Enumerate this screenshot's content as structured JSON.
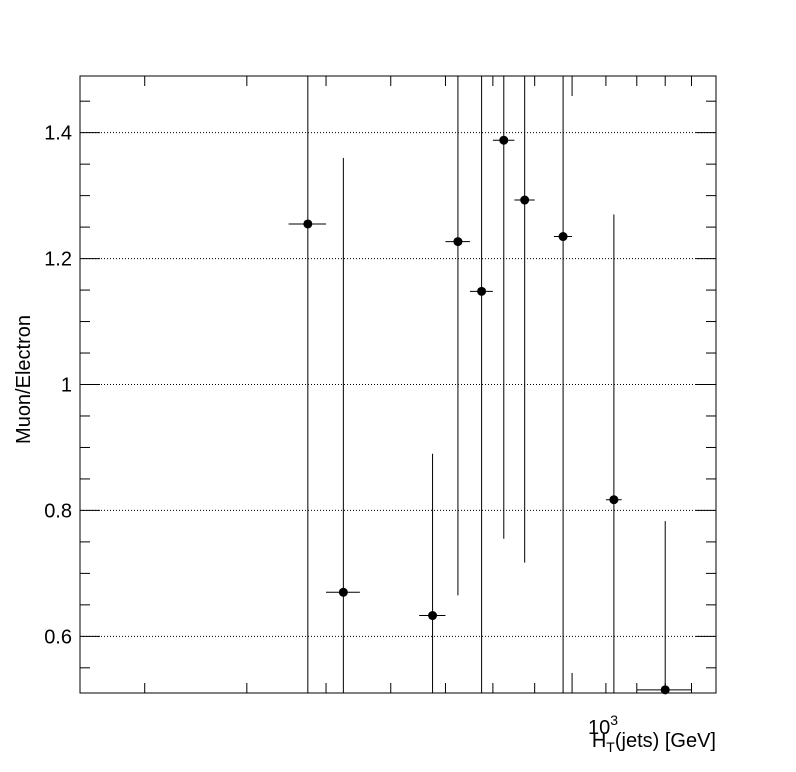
{
  "chart_data": {
    "type": "scatter",
    "xlabel_main": "H",
    "xlabel_sub": "T",
    "xlabel_rest": "(jets) [GeV]",
    "x_scale_base": "10",
    "x_scale_exp": "3",
    "ylabel": "Muon/Electron",
    "x_scale": "log",
    "xlim": [
      250,
      1500
    ],
    "ylim": [
      0.51,
      1.49
    ],
    "grid_y": true,
    "grid_x": false,
    "yticks": [
      0.6,
      0.8,
      1,
      1.2,
      1.4
    ],
    "ytick_labels": [
      "0.6",
      "0.8",
      "1",
      "1.2",
      "1.4"
    ],
    "marker_color": "#000000",
    "points": [
      {
        "x": 475,
        "y": 1.255,
        "xerr_lo": 25,
        "xerr_hi": 25,
        "yerr_lo": 0.745,
        "yerr_hi": 0.245
      },
      {
        "x": 525,
        "y": 0.67,
        "xerr_lo": 25,
        "xerr_hi": 25,
        "yerr_lo": 0.16,
        "yerr_hi": 0.69
      },
      {
        "x": 675,
        "y": 0.633,
        "xerr_lo": 25,
        "xerr_hi": 25,
        "yerr_lo": 0.123,
        "yerr_hi": 0.257
      },
      {
        "x": 725,
        "y": 1.227,
        "xerr_lo": 25,
        "xerr_hi": 25,
        "yerr_lo": 0.562,
        "yerr_hi": 0.263
      },
      {
        "x": 775,
        "y": 1.148,
        "xerr_lo": 25,
        "xerr_hi": 25,
        "yerr_lo": 0.638,
        "yerr_hi": 0.342
      },
      {
        "x": 825,
        "y": 1.388,
        "xerr_lo": 25,
        "xerr_hi": 25,
        "yerr_lo": 0.633,
        "yerr_hi": 0.102
      },
      {
        "x": 875,
        "y": 1.293,
        "xerr_lo": 25,
        "xerr_hi": 25,
        "yerr_lo": 0.576,
        "yerr_hi": 0.197
      },
      {
        "x": 975,
        "y": 1.235,
        "xerr_lo": 25,
        "xerr_hi": 25,
        "yerr_lo": 0.725,
        "yerr_hi": 0.255
      },
      {
        "x": 1125,
        "y": 0.817,
        "xerr_lo": 25,
        "xerr_hi": 25,
        "yerr_lo": 0.307,
        "yerr_hi": 0.453
      },
      {
        "x": 1300,
        "y": 0.515,
        "xerr_lo": 100,
        "xerr_hi": 100,
        "yerr_lo": 0.005,
        "yerr_hi": 0.268
      }
    ]
  }
}
